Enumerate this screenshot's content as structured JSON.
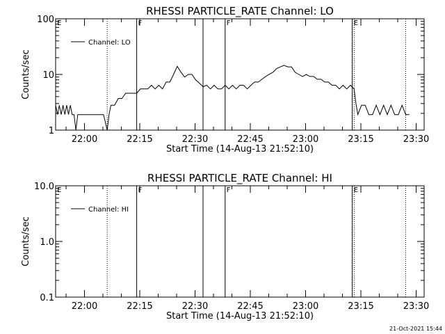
{
  "chart_data": [
    {
      "type": "line",
      "title": "RHESSI PARTICLE_RATE Channel: LO",
      "xlabel": "Start Time (14-Aug-13 21:52:10)",
      "ylabel": "Counts/sec",
      "yscale": "log",
      "ylim": [
        1,
        100
      ],
      "y_ticks": [
        "1",
        "10",
        "100"
      ],
      "xlim": [
        "21:52:10",
        "23:32:10"
      ],
      "x_ticks": [
        "22:00",
        "22:15",
        "22:30",
        "22:45",
        "23:00",
        "23:15",
        "23:30"
      ],
      "grid": false,
      "legend": "top-left",
      "series": [
        {
          "name": "Channel: LO",
          "color": "#000000",
          "x": [
            "21:52:10",
            "21:52:40",
            "21:53:10",
            "21:53:40",
            "21:54:10",
            "21:54:40",
            "21:55:10",
            "21:55:40",
            "21:56:10",
            "21:56:40",
            "21:57:10",
            "21:57:40",
            "21:58:10",
            "21:59:10",
            "22:00:10",
            "22:01:10",
            "22:02:10",
            "22:03:10",
            "22:04:10",
            "22:05:10",
            "22:06:10",
            "22:06:40",
            "22:07:10",
            "22:08:10",
            "22:09:10",
            "22:10:10",
            "22:11:10",
            "22:12:10",
            "22:13:10",
            "22:14:10",
            "22:15:10",
            "22:16:10",
            "22:17:10",
            "22:18:10",
            "22:19:10",
            "22:20:10",
            "22:21:10",
            "22:22:10",
            "22:23:10",
            "22:24:10",
            "22:25:10",
            "22:26:10",
            "22:27:10",
            "22:28:10",
            "22:29:10",
            "22:30:10",
            "22:31:10",
            "22:32:10",
            "22:33:10",
            "22:34:10",
            "22:35:10",
            "22:36:10",
            "22:37:10",
            "22:38:10",
            "22:39:10",
            "22:40:10",
            "22:41:10",
            "22:42:10",
            "22:43:10",
            "22:44:10",
            "22:45:10",
            "22:46:10",
            "22:47:10",
            "22:48:10",
            "22:49:10",
            "22:50:10",
            "22:51:10",
            "22:52:10",
            "22:53:10",
            "22:54:10",
            "22:55:10",
            "22:56:10",
            "22:57:10",
            "22:58:10",
            "22:59:10",
            "23:00:10",
            "23:01:10",
            "23:02:10",
            "23:03:10",
            "23:04:10",
            "23:05:10",
            "23:06:10",
            "23:07:10",
            "23:08:10",
            "23:09:10",
            "23:10:10",
            "23:11:10",
            "23:12:10",
            "23:13:10",
            "23:13:40",
            "23:14:10",
            "23:15:10",
            "23:16:10",
            "23:17:10",
            "23:18:10",
            "23:19:10",
            "23:20:10",
            "23:21:10",
            "23:22:10",
            "23:23:10",
            "23:24:10",
            "23:25:10",
            "23:26:10",
            "23:27:10",
            "23:28:10"
          ],
          "y": [
            2.8,
            1.9,
            2.8,
            1.9,
            2.8,
            1.9,
            2.8,
            1.9,
            2.8,
            1.9,
            1.9,
            1.0,
            1.9,
            1.9,
            1.9,
            1.9,
            1.9,
            1.9,
            1.9,
            1.9,
            1.0,
            1.9,
            2.8,
            2.8,
            3.7,
            3.7,
            4.6,
            4.6,
            4.6,
            4.6,
            5.5,
            5.5,
            5.5,
            6.4,
            5.5,
            6.4,
            5.5,
            7.3,
            7.3,
            10.0,
            14.0,
            11.0,
            9.0,
            10.0,
            10.0,
            8.0,
            7.0,
            6.0,
            6.4,
            5.5,
            6.4,
            5.5,
            5.5,
            6.4,
            5.5,
            6.4,
            5.5,
            6.4,
            6.4,
            5.5,
            6.4,
            7.3,
            7.3,
            8.2,
            9.2,
            10.1,
            11.0,
            12.8,
            13.7,
            14.6,
            13.7,
            13.7,
            10.9,
            10.0,
            9.2,
            10.0,
            9.2,
            9.2,
            8.2,
            8.2,
            7.3,
            7.3,
            6.4,
            6.4,
            5.5,
            6.4,
            5.5,
            6.4,
            5.5,
            3.0,
            1.9,
            2.8,
            2.8,
            1.9,
            1.9,
            2.8,
            1.9,
            2.8,
            1.9,
            2.8,
            1.9,
            1.9,
            2.8,
            1.9,
            1.9
          ]
        }
      ],
      "annotations": [
        {
          "text": "E",
          "at": "21:52:10",
          "line": "none"
        },
        {
          "text": "",
          "at": "22:06:10",
          "line": "dotted"
        },
        {
          "text": "F",
          "at": "22:14:10",
          "line": "solid"
        },
        {
          "text": "",
          "at": "22:32:10",
          "line": "solid"
        },
        {
          "text": "F",
          "at": "22:38:10",
          "line": "solid"
        },
        {
          "text": "E",
          "at": "23:12:40",
          "line": "solid"
        },
        {
          "text": "",
          "at": "23:13:10",
          "line": "dotted"
        },
        {
          "text": "",
          "at": "23:27:10",
          "line": "dotted"
        }
      ]
    },
    {
      "type": "line",
      "title": "RHESSI PARTICLE_RATE Channel: HI",
      "xlabel": "Start Time (14-Aug-13 21:52:10)",
      "ylabel": "Counts/sec",
      "yscale": "log",
      "ylim": [
        0.1,
        10.0
      ],
      "y_ticks": [
        "0.1",
        "1.0",
        "10.0"
      ],
      "xlim": [
        "21:52:10",
        "23:32:10"
      ],
      "x_ticks": [
        "22:00",
        "22:15",
        "22:30",
        "22:45",
        "23:00",
        "23:15",
        "23:30"
      ],
      "grid": false,
      "legend": "top-left",
      "series": [
        {
          "name": "Channel: HI",
          "color": "#000000",
          "x": [],
          "y": []
        }
      ],
      "annotations": [
        {
          "text": "E",
          "at": "21:52:10",
          "line": "none"
        },
        {
          "text": "",
          "at": "22:06:10",
          "line": "dotted"
        },
        {
          "text": "F",
          "at": "22:14:10",
          "line": "solid"
        },
        {
          "text": "",
          "at": "22:32:10",
          "line": "solid"
        },
        {
          "text": "F",
          "at": "22:38:10",
          "line": "solid"
        },
        {
          "text": "E",
          "at": "23:12:40",
          "line": "solid"
        },
        {
          "text": "",
          "at": "23:13:10",
          "line": "dotted"
        },
        {
          "text": "",
          "at": "23:27:10",
          "line": "dotted"
        }
      ]
    }
  ],
  "footer": {
    "timestamp": "21-Oct-2021 15:44"
  }
}
